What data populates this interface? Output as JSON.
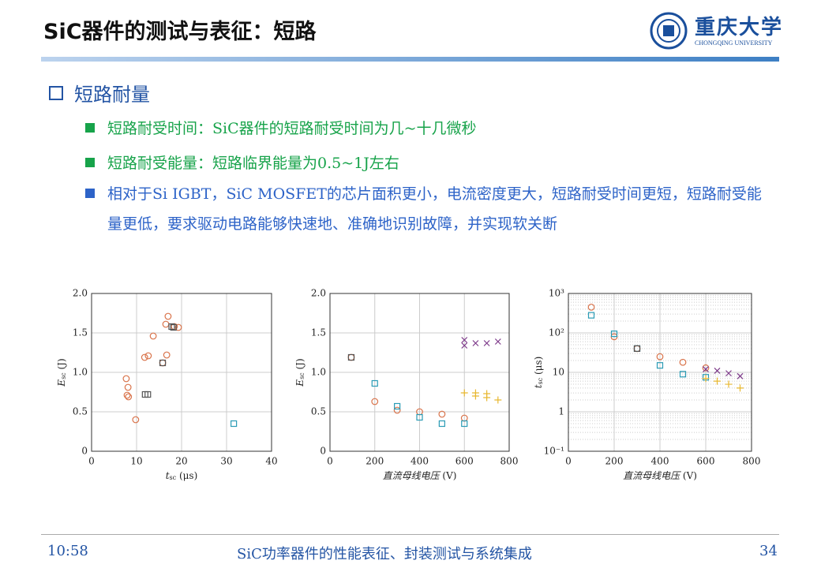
{
  "header": {
    "title": "SiC器件的测试与表征：短路",
    "logo_cn": "重庆大学",
    "logo_en": "CHONGQING UNIVERSITY"
  },
  "section": "短路耐量",
  "bullets": [
    {
      "text": "短路耐受时间：SiC器件的短路耐受时间为几~十几微秒",
      "color": "#17a34a"
    },
    {
      "text": "短路耐受能量：短路临界能量为0.5~1J左右",
      "color": "#17a34a"
    },
    {
      "text": "相对于Si IGBT，SiC MOSFET的芯片面积更小，电流密度更大，短路耐受时间更短，短路耐受能量更低，要求驱动电路能够快速地、准确地识别故障，并实现软关断",
      "color": "#2d63c8"
    }
  ],
  "footer": {
    "time": "10:58",
    "subject": "SiC功率器件的性能表征、封装测试与系统集成",
    "page": "34"
  },
  "chart_data": [
    {
      "type": "scatter",
      "xlabel": {
        "symbol": "t",
        "subscript": "sc",
        "unit": " (μs)"
      },
      "ylabel": {
        "symbol": "E",
        "subscript": "sc",
        "unit": " (J)"
      },
      "xlim": [
        0,
        40
      ],
      "xticks": [
        0,
        10,
        20,
        30,
        40
      ],
      "ylim": [
        0,
        2
      ],
      "yticks": [
        0,
        0.5,
        {
          "value": 1,
          "label": "1.0"
        },
        1.5,
        {
          "value": 2,
          "label": "2.0"
        }
      ],
      "grid": true,
      "series": [
        {
          "color": "#d9734a",
          "marker": "circle",
          "x": [
            7.7,
            8.1,
            7.9,
            8.2,
            9.8,
            11.8,
            12.6,
            13.7,
            15.8,
            16.5,
            17.0,
            16.7,
            18.4,
            19.3
          ],
          "values": [
            0.92,
            0.81,
            0.71,
            0.69,
            0.4,
            1.19,
            1.21,
            1.46,
            1.12,
            1.61,
            1.71,
            1.22,
            1.58,
            1.57
          ]
        },
        {
          "color": "#555555",
          "marker": "square",
          "x": [
            11.9,
            12.5,
            15.8,
            17.8,
            18.2
          ],
          "values": [
            0.72,
            0.72,
            1.12,
            1.58,
            1.57
          ]
        },
        {
          "color": "#2a9bb5",
          "marker": "square",
          "x": [
            31.6
          ],
          "values": [
            0.35
          ]
        }
      ]
    },
    {
      "type": "scatter",
      "xlabel": {
        "symbol": "直流母线电压",
        "subscript": "",
        "unit": " (V)"
      },
      "ylabel": {
        "symbol": "E",
        "subscript": "sc",
        "unit": " (J)"
      },
      "xlim": [
        0,
        800
      ],
      "xticks": [
        0,
        200,
        400,
        600,
        800
      ],
      "ylim": [
        0,
        2
      ],
      "yticks": [
        0,
        0.5,
        {
          "value": 1,
          "label": "1.0"
        },
        1.5,
        {
          "value": 2,
          "label": "2.0"
        }
      ],
      "grid": true,
      "series": [
        {
          "color": "#d9734a",
          "marker": "circle",
          "x": [
            95,
            200,
            300,
            400,
            500,
            600
          ],
          "values": [
            1.19,
            0.63,
            0.52,
            0.5,
            0.47,
            0.42
          ]
        },
        {
          "color": "#555555",
          "marker": "square",
          "x": [
            95
          ],
          "values": [
            1.19
          ]
        },
        {
          "color": "#2a9bb5",
          "marker": "square",
          "x": [
            200,
            300,
            400,
            500,
            600
          ],
          "values": [
            0.86,
            0.57,
            0.43,
            0.35,
            0.35
          ]
        },
        {
          "color": "#7e3b8a",
          "marker": "x",
          "x": [
            600,
            600,
            650,
            700,
            750
          ],
          "values": [
            1.41,
            1.34,
            1.37,
            1.37,
            1.39
          ]
        },
        {
          "color": "#e8b830",
          "marker": "plus",
          "x": [
            600,
            650,
            650,
            700,
            700,
            750
          ],
          "values": [
            0.74,
            0.74,
            0.7,
            0.73,
            0.68,
            0.65
          ]
        }
      ]
    },
    {
      "type": "scatter",
      "xlabel": {
        "symbol": "直流母线电压",
        "subscript": "",
        "unit": " (V)"
      },
      "ylabel": {
        "symbol": "t",
        "subscript": "sc",
        "unit": " (μs)"
      },
      "xlim": [
        0,
        800
      ],
      "xticks": [
        0,
        200,
        400,
        600,
        800
      ],
      "ylim": [
        0.1,
        1000
      ],
      "log_y": true,
      "yticks": [
        {
          "value": 0.1,
          "label": "10⁻¹"
        },
        1,
        10,
        {
          "value": 100,
          "label": "10²"
        },
        {
          "value": 1000,
          "label": "10³"
        }
      ],
      "grid": true,
      "minor_grid": true,
      "series": [
        {
          "color": "#d9734a",
          "marker": "circle",
          "x": [
            100,
            200,
            300,
            400,
            500,
            600
          ],
          "values": [
            450,
            80,
            40,
            25,
            18,
            13
          ]
        },
        {
          "color": "#2a9bb5",
          "marker": "square",
          "x": [
            100,
            200,
            300,
            400,
            500,
            600
          ],
          "values": [
            280,
            95,
            40,
            15,
            9,
            7.5
          ]
        },
        {
          "color": "#555555",
          "marker": "square",
          "x": [
            300
          ],
          "values": [
            40
          ]
        },
        {
          "color": "#7e3b8a",
          "marker": "x",
          "x": [
            600,
            650,
            700,
            750
          ],
          "values": [
            12,
            11,
            9.5,
            8
          ]
        },
        {
          "color": "#e8b830",
          "marker": "plus",
          "x": [
            600,
            650,
            700,
            750
          ],
          "values": [
            7,
            6,
            5,
            4
          ]
        }
      ]
    }
  ]
}
